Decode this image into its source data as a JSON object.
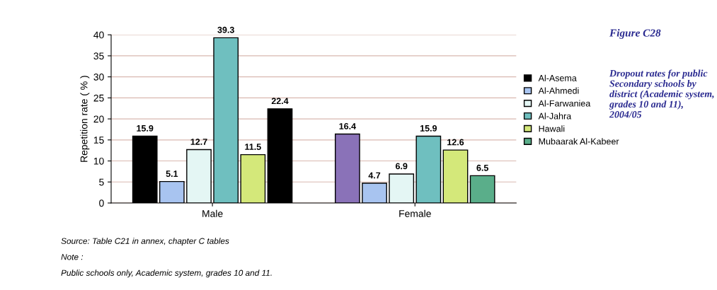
{
  "chart_data": {
    "type": "bar",
    "title": "Figure C28",
    "subtitle": "Dropout rates for public Secondary schools by district (Academic system, grades 10 and 11), 2004/05",
    "ylabel": "Repetition rate ( % )",
    "categories": [
      "Male",
      "Female"
    ],
    "series": [
      {
        "name": "Al-Asema",
        "color": "#000000",
        "colors": [
          "#000000",
          "#8a72b8"
        ],
        "values": [
          15.9,
          16.4
        ],
        "value_labels": [
          "15.9",
          "16.4"
        ]
      },
      {
        "name": "Al-Ahmedi",
        "color": "#a8c4f0",
        "colors": [
          "#a8c4f0",
          "#a8c4f0"
        ],
        "values": [
          5.1,
          4.7
        ],
        "value_labels": [
          "5.1",
          "4.7"
        ]
      },
      {
        "name": "Al-Farwaniea",
        "color": "#e4f6f4",
        "colors": [
          "#e4f6f4",
          "#e4f6f4"
        ],
        "values": [
          12.7,
          6.9
        ],
        "value_labels": [
          "12.7",
          "6.9"
        ]
      },
      {
        "name": "Al-Jahra",
        "color": "#6fbfbf",
        "colors": [
          "#6fbfbf",
          "#6fbfbf"
        ],
        "values": [
          39.3,
          15.9
        ],
        "value_labels": [
          "39.3",
          "15.9"
        ]
      },
      {
        "name": "Hawali",
        "color": "#d4e87a",
        "colors": [
          "#d4e87a",
          "#d4e87a"
        ],
        "values": [
          11.5,
          12.6
        ],
        "value_labels": [
          "11.5",
          "12.6"
        ]
      },
      {
        "name": "Mubaarak Al-Kabeer",
        "color": "#5aae8a",
        "colors": [
          "#000000",
          "#5aae8a"
        ],
        "values": [
          22.4,
          6.5
        ],
        "value_labels": [
          "22.4",
          "6.5"
        ]
      }
    ],
    "ylim": [
      0,
      40
    ],
    "yticks": [
      0,
      5,
      10,
      15,
      20,
      25,
      30,
      35,
      40
    ],
    "grid": "y",
    "legend": "right",
    "annotations": [
      "Source: Table C21 in annex, chapter C tables",
      "Note :",
      "Public schools only, Academic system, grades 10 and 11."
    ]
  }
}
